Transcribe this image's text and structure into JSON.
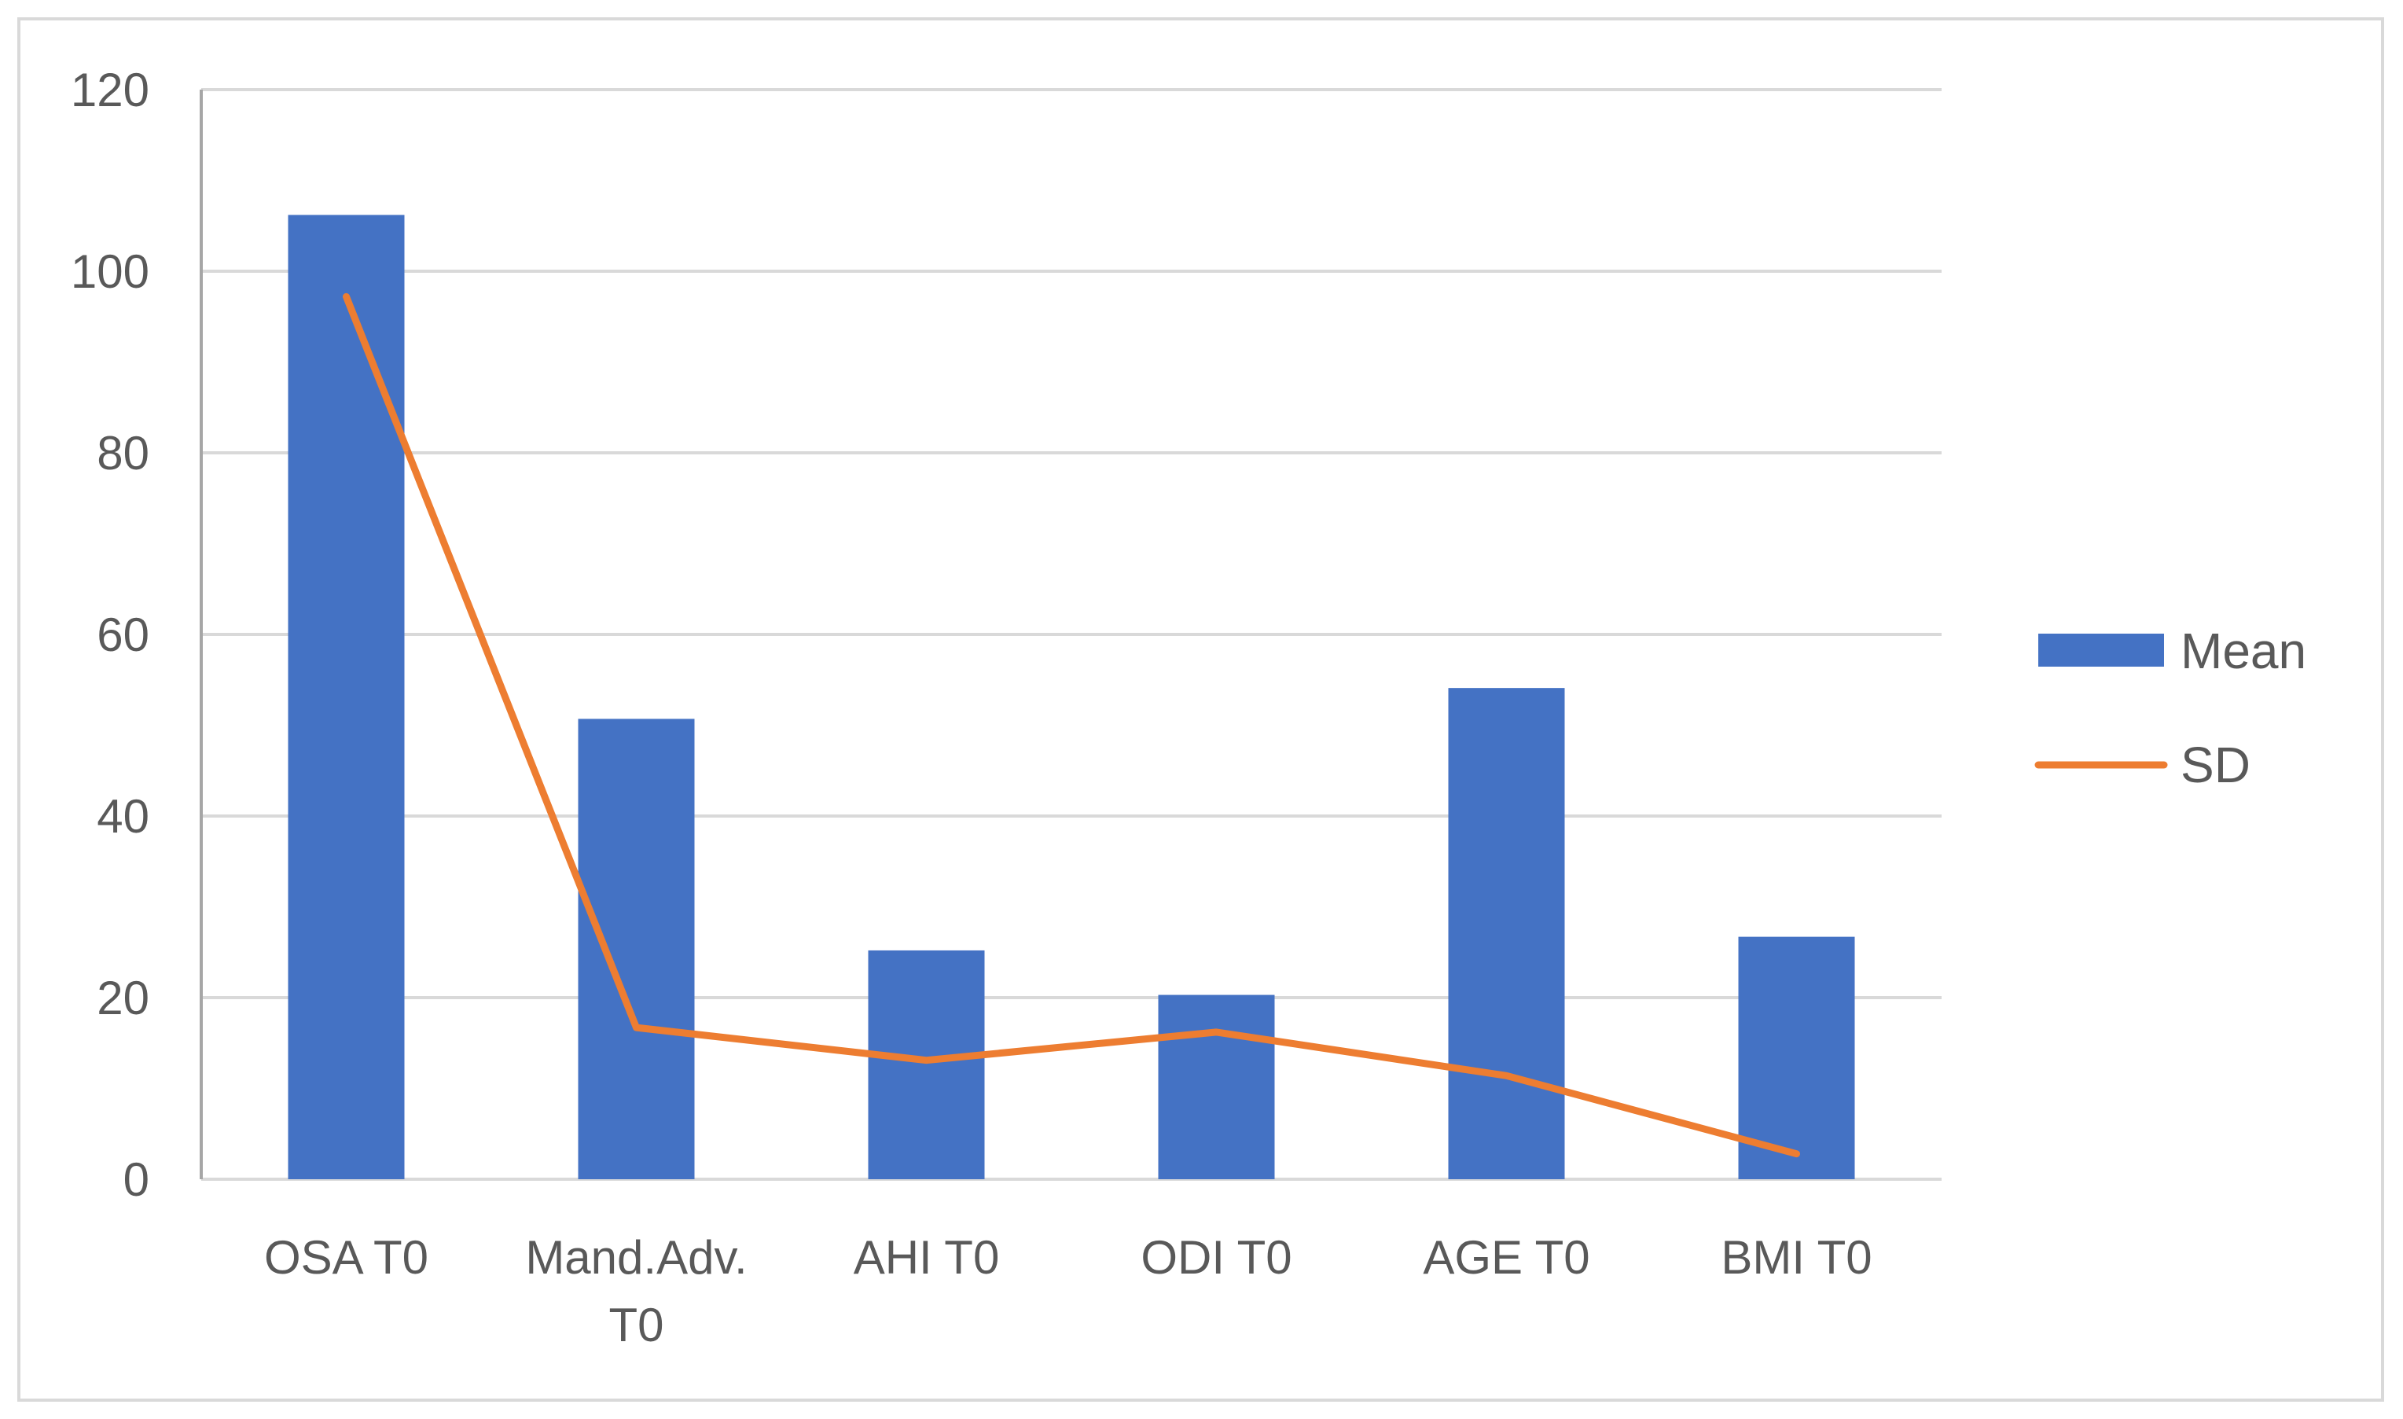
{
  "chart_data": {
    "type": "bar",
    "categories": [
      [
        "OSA T0"
      ],
      [
        "Mand.Adv.",
        "T0"
      ],
      [
        "AHI T0"
      ],
      [
        "ODI T0"
      ],
      [
        "AGE T0"
      ],
      [
        "BMI T0"
      ]
    ],
    "series": [
      {
        "name": "Mean",
        "kind": "bar",
        "color": "#4472C4",
        "values": [
          106.2,
          50.7,
          25.2,
          20.3,
          54.1,
          26.7
        ]
      },
      {
        "name": "SD",
        "kind": "line",
        "color": "#ED7D31",
        "values": [
          97.2,
          16.7,
          13.1,
          16.2,
          11.4,
          2.8
        ]
      }
    ],
    "ylim": [
      0,
      120
    ],
    "yticks": [
      "0",
      "20",
      "40",
      "60",
      "80",
      "100",
      "120"
    ],
    "grid": true,
    "legend": "right",
    "title": "",
    "xlabel": "",
    "ylabel": ""
  }
}
